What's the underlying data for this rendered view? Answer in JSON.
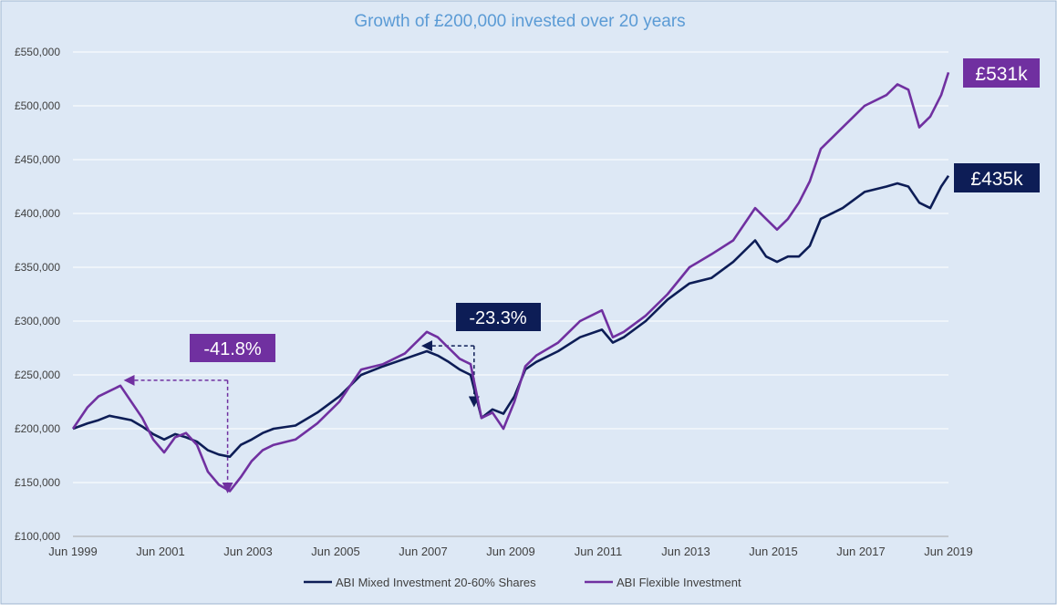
{
  "chart_data": {
    "type": "line",
    "title": "Growth of £200,000  invested over 20 years",
    "xlabel": "",
    "ylabel": "",
    "ylim": [
      100000,
      550000
    ],
    "y_ticks": [
      100000,
      150000,
      200000,
      250000,
      300000,
      350000,
      400000,
      450000,
      500000,
      550000
    ],
    "y_tick_labels": [
      "£100,000",
      "£150,000",
      "£200,000",
      "£250,000",
      "£300,000",
      "£350,000",
      "£400,000",
      "£450,000",
      "£500,000",
      "£550,000"
    ],
    "x_range": [
      1999.417,
      2019.417
    ],
    "x_ticks": [
      1999.417,
      2001.417,
      2003.417,
      2005.417,
      2007.417,
      2009.417,
      2011.417,
      2013.417,
      2015.417,
      2017.417,
      2019.417
    ],
    "x_tick_labels": [
      "Jun 1999",
      "Jun 2001",
      "Jun 2003",
      "Jun 2005",
      "Jun 2007",
      "Jun 2009",
      "Jun 2011",
      "Jun 2013",
      "Jun 2015",
      "Jun 2017",
      "Jun 2019"
    ],
    "grid": "horizontal",
    "legend_position": "bottom",
    "series": [
      {
        "name": "ABI Mixed Investment 20-60% Shares",
        "color": "#0d1d56",
        "x": [
          1999.417,
          1999.75,
          2000.0,
          2000.25,
          2000.5,
          2000.75,
          2001.0,
          2001.25,
          2001.5,
          2001.75,
          2002.0,
          2002.25,
          2002.5,
          2002.75,
          2003.0,
          2003.25,
          2003.5,
          2003.75,
          2004.0,
          2004.5,
          2005.0,
          2005.5,
          2006.0,
          2006.5,
          2007.0,
          2007.5,
          2007.75,
          2008.0,
          2008.25,
          2008.5,
          2008.75,
          2009.0,
          2009.25,
          2009.5,
          2009.75,
          2010.0,
          2010.5,
          2011.0,
          2011.5,
          2011.75,
          2012.0,
          2012.5,
          2013.0,
          2013.5,
          2014.0,
          2014.5,
          2015.0,
          2015.25,
          2015.5,
          2015.75,
          2016.0,
          2016.25,
          2016.5,
          2017.0,
          2017.5,
          2018.0,
          2018.25,
          2018.5,
          2018.75,
          2019.0,
          2019.25,
          2019.417
        ],
        "values": [
          200000,
          205000,
          208000,
          212000,
          210000,
          208000,
          202000,
          195000,
          190000,
          195000,
          192000,
          188000,
          180000,
          176000,
          174000,
          185000,
          190000,
          196000,
          200000,
          203000,
          215000,
          230000,
          250000,
          258000,
          265000,
          272000,
          268000,
          262000,
          255000,
          250000,
          210000,
          218000,
          214000,
          230000,
          255000,
          262000,
          272000,
          285000,
          292000,
          280000,
          285000,
          300000,
          320000,
          335000,
          340000,
          355000,
          375000,
          360000,
          355000,
          360000,
          360000,
          370000,
          395000,
          405000,
          420000,
          425000,
          428000,
          425000,
          410000,
          405000,
          425000,
          435000
        ]
      },
      {
        "name": "ABI Flexible Investment",
        "color": "#7030a0",
        "x": [
          1999.417,
          1999.75,
          2000.0,
          2000.25,
          2000.5,
          2000.75,
          2001.0,
          2001.25,
          2001.5,
          2001.75,
          2002.0,
          2002.25,
          2002.5,
          2002.75,
          2003.0,
          2003.25,
          2003.5,
          2003.75,
          2004.0,
          2004.5,
          2005.0,
          2005.5,
          2006.0,
          2006.5,
          2007.0,
          2007.5,
          2007.75,
          2008.0,
          2008.25,
          2008.5,
          2008.75,
          2009.0,
          2009.25,
          2009.5,
          2009.75,
          2010.0,
          2010.5,
          2011.0,
          2011.5,
          2011.75,
          2012.0,
          2012.5,
          2013.0,
          2013.5,
          2014.0,
          2014.5,
          2015.0,
          2015.25,
          2015.5,
          2015.75,
          2016.0,
          2016.25,
          2016.5,
          2017.0,
          2017.5,
          2018.0,
          2018.25,
          2018.5,
          2018.75,
          2019.0,
          2019.25,
          2019.417
        ],
        "values": [
          200000,
          220000,
          230000,
          235000,
          240000,
          225000,
          210000,
          190000,
          178000,
          192000,
          196000,
          185000,
          160000,
          148000,
          142000,
          155000,
          170000,
          180000,
          185000,
          190000,
          205000,
          225000,
          255000,
          260000,
          270000,
          290000,
          285000,
          275000,
          265000,
          260000,
          210000,
          215000,
          200000,
          225000,
          258000,
          268000,
          280000,
          300000,
          310000,
          285000,
          290000,
          305000,
          325000,
          350000,
          362000,
          375000,
          405000,
          395000,
          385000,
          395000,
          410000,
          430000,
          460000,
          480000,
          500000,
          510000,
          520000,
          515000,
          480000,
          490000,
          510000,
          531000
        ]
      }
    ],
    "annotations": {
      "end_label_flexible": "£531k",
      "end_label_mixed": "£435k",
      "drawdown_flexible": "-41.8%",
      "drawdown_mixed": "-23.3%"
    }
  }
}
